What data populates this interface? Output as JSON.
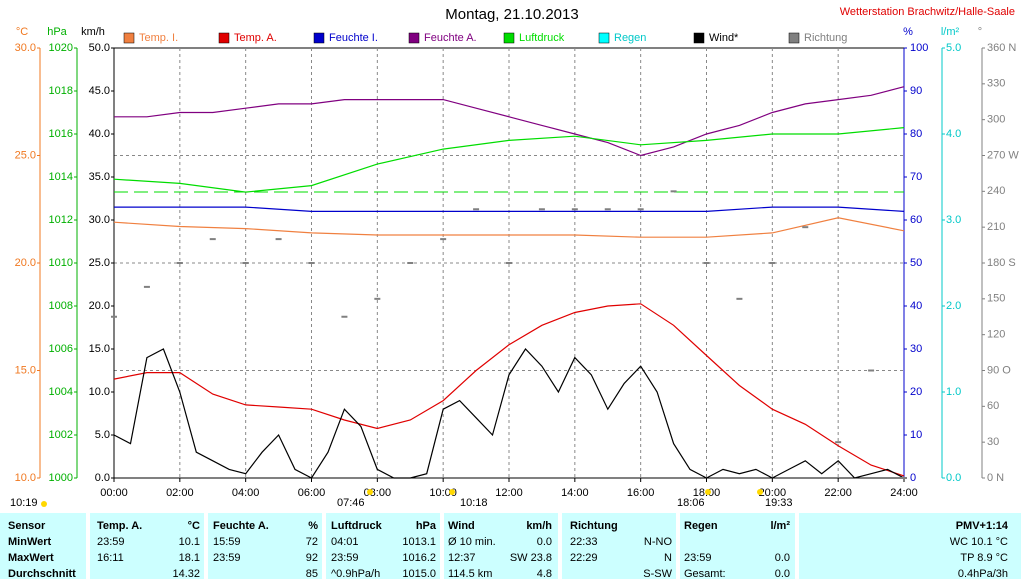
{
  "chart_data": {
    "type": "line",
    "title": "Montag, 21.10.2013",
    "subtitle": "Wetterstation Brachwitz/Halle-Saale",
    "xlim": [
      0,
      24
    ],
    "xticks": [
      {
        "value": 0,
        "label": "00:00"
      },
      {
        "value": 2,
        "label": "02:00"
      },
      {
        "value": 4,
        "label": "04:00"
      },
      {
        "value": 6,
        "label": "06:00"
      },
      {
        "value": 8,
        "label": "08:00"
      },
      {
        "value": 10,
        "label": "10:00"
      },
      {
        "value": 12,
        "label": "12:00"
      },
      {
        "value": 14,
        "label": "14:00"
      },
      {
        "value": 16,
        "label": "16:00"
      },
      {
        "value": 18,
        "label": "18:00"
      },
      {
        "value": 20,
        "label": "20:00"
      },
      {
        "value": 22,
        "label": "22:00"
      },
      {
        "value": 24,
        "label": "24:00"
      }
    ],
    "grid": true,
    "axes": {
      "temp": {
        "unit": "°C",
        "color": "#f07820",
        "lim": [
          10,
          30
        ],
        "ticks": [
          {
            "value": 10,
            "label": "10.0"
          },
          {
            "value": 15,
            "label": "15.0"
          },
          {
            "value": 20,
            "label": "20.0"
          },
          {
            "value": 25,
            "label": "25.0"
          },
          {
            "value": 30,
            "label": "30.0"
          }
        ]
      },
      "pressure": {
        "unit": "hPa",
        "color": "#00b000",
        "lim": [
          1000,
          1020
        ],
        "ticks": [
          1000,
          1002,
          1004,
          1006,
          1008,
          1010,
          1012,
          1014,
          1016,
          1018,
          1020
        ]
      },
      "wind": {
        "unit": "km/h",
        "color": "#000000",
        "lim": [
          0,
          50
        ],
        "ticks": [
          {
            "value": 0,
            "label": "0.0"
          },
          {
            "value": 5,
            "label": "5.0"
          },
          {
            "value": 10,
            "label": "10.0"
          },
          {
            "value": 15,
            "label": "15.0"
          },
          {
            "value": 20,
            "label": "20.0"
          },
          {
            "value": 25,
            "label": "25.0"
          },
          {
            "value": 30,
            "label": "30.0"
          },
          {
            "value": 35,
            "label": "35.0"
          },
          {
            "value": 40,
            "label": "40.0"
          },
          {
            "value": 45,
            "label": "45.0"
          },
          {
            "value": 50,
            "label": "50.0"
          }
        ]
      },
      "humidity": {
        "unit": "%",
        "color": "#0000cc",
        "lim": [
          0,
          100
        ],
        "ticks": [
          0,
          10,
          20,
          30,
          40,
          50,
          60,
          70,
          80,
          90,
          100
        ]
      },
      "rain": {
        "unit": "l/m²",
        "color": "#00c8c8",
        "lim": [
          0,
          5
        ],
        "ticks": [
          {
            "value": 0,
            "label": "0.0"
          },
          {
            "value": 1,
            "label": "1.0"
          },
          {
            "value": 2,
            "label": "2.0"
          },
          {
            "value": 3,
            "label": "3.0"
          },
          {
            "value": 4,
            "label": "4.0"
          },
          {
            "value": 5,
            "label": "5.0"
          }
        ]
      },
      "direction": {
        "unit": "°",
        "color": "#808080",
        "lim": [
          0,
          360
        ],
        "ticks": [
          {
            "value": 0,
            "label": "0 N"
          },
          {
            "value": 30,
            "label": "30"
          },
          {
            "value": 60,
            "label": "60"
          },
          {
            "value": 90,
            "label": "90 O"
          },
          {
            "value": 120,
            "label": "120"
          },
          {
            "value": 150,
            "label": "150"
          },
          {
            "value": 180,
            "label": "180 S"
          },
          {
            "value": 210,
            "label": "210"
          },
          {
            "value": 240,
            "label": "240"
          },
          {
            "value": 270,
            "label": "270 W"
          },
          {
            "value": 300,
            "label": "300"
          },
          {
            "value": 330,
            "label": "330"
          },
          {
            "value": 360,
            "label": "360 N"
          }
        ]
      }
    },
    "pressure_reference": 1013.3,
    "series": [
      {
        "name": "Temp. I.",
        "color": "#f08040",
        "axis": "temp",
        "x": [
          0,
          2,
          4,
          6,
          8,
          10,
          12,
          14,
          16,
          18,
          20,
          22,
          24
        ],
        "values": [
          21.9,
          21.7,
          21.6,
          21.4,
          21.3,
          21.3,
          21.3,
          21.3,
          21.2,
          21.2,
          21.4,
          22.1,
          21.5
        ]
      },
      {
        "name": "Temp. A.",
        "color": "#e00000",
        "axis": "temp",
        "x": [
          0,
          1,
          2,
          3,
          4,
          5,
          6,
          7,
          8,
          9,
          10,
          11,
          12,
          13,
          14,
          15,
          16,
          17,
          18,
          19,
          20,
          21,
          22,
          23,
          24
        ],
        "values": [
          14.6,
          14.9,
          14.9,
          13.9,
          13.4,
          13.3,
          13.2,
          12.7,
          12.3,
          12.7,
          13.6,
          15.0,
          16.2,
          17.1,
          17.7,
          18.0,
          18.1,
          17.1,
          15.7,
          14.3,
          13.2,
          12.5,
          11.5,
          10.6,
          10.1
        ]
      },
      {
        "name": "Feuchte I.",
        "color": "#0000cc",
        "axis": "humidity",
        "x": [
          0,
          2,
          4,
          6,
          8,
          10,
          12,
          14,
          16,
          18,
          20,
          22,
          24
        ],
        "values": [
          63,
          63,
          63,
          62,
          62,
          62,
          62,
          62,
          62,
          62,
          63,
          63,
          62
        ]
      },
      {
        "name": "Feuchte A.",
        "color": "#800080",
        "axis": "humidity",
        "x": [
          0,
          1,
          2,
          3,
          4,
          5,
          6,
          7,
          8,
          9,
          10,
          11,
          12,
          13,
          14,
          15,
          16,
          17,
          18,
          19,
          20,
          21,
          22,
          23,
          24
        ],
        "values": [
          84,
          84,
          85,
          85,
          86,
          87,
          87,
          88,
          88,
          88,
          88,
          86,
          84,
          82,
          80,
          78,
          75,
          77,
          80,
          82,
          85,
          87,
          88,
          89,
          91
        ]
      },
      {
        "name": "Luftdruck",
        "color": "#00dd00",
        "axis": "pressure",
        "x": [
          0,
          2,
          4,
          6,
          8,
          10,
          12,
          14,
          16,
          18,
          20,
          22,
          24
        ],
        "values": [
          1013.9,
          1013.7,
          1013.3,
          1013.6,
          1014.6,
          1015.3,
          1015.7,
          1015.9,
          1015.5,
          1015.7,
          1016.0,
          1016.0,
          1016.3
        ]
      },
      {
        "name": "Regen",
        "color": "#00ffff",
        "axis": "rain",
        "x": [],
        "values": []
      },
      {
        "name": "Wind*",
        "color": "#000000",
        "axis": "wind",
        "x": [
          0,
          0.5,
          1,
          1.5,
          2,
          2.5,
          3,
          3.5,
          4,
          4.5,
          5,
          5.5,
          6,
          6.5,
          7,
          7.5,
          8,
          8.5,
          9,
          9.5,
          10,
          10.5,
          11,
          11.5,
          12,
          12.5,
          13,
          13.5,
          14,
          14.5,
          15,
          15.5,
          16,
          16.5,
          17,
          17.5,
          18,
          18.5,
          19,
          19.5,
          20,
          20.5,
          21,
          21.5,
          22,
          22.5,
          23,
          23.5,
          24
        ],
        "values": [
          5,
          4,
          14,
          15,
          10,
          3,
          2,
          1,
          0.5,
          3,
          5,
          1,
          0,
          3,
          8,
          6,
          1,
          0,
          0,
          0.5,
          8,
          9,
          7,
          5,
          12,
          15,
          13,
          10,
          14,
          12,
          8,
          11,
          13,
          10,
          4,
          1,
          0,
          1,
          0.5,
          1,
          0,
          1,
          2,
          0.5,
          2,
          0,
          0.5,
          1,
          0
        ]
      },
      {
        "name": "Richtung",
        "color": "#808080",
        "axis": "direction",
        "scatter": true,
        "x": [
          0,
          1,
          2,
          3,
          4,
          5,
          6,
          7,
          8,
          9,
          10,
          11,
          12,
          13,
          14,
          15,
          16,
          17,
          18,
          19,
          20,
          21,
          22,
          23,
          24
        ],
        "values": [
          135,
          160,
          180,
          200,
          180,
          200,
          180,
          135,
          150,
          180,
          200,
          225,
          180,
          225,
          225,
          225,
          225,
          240,
          180,
          150,
          180,
          210,
          30,
          90,
          0
        ]
      }
    ],
    "time_marks": [
      "10:19",
      "07:46",
      "10:18",
      "18:06",
      "19:33"
    ]
  },
  "table": {
    "rows": [
      [
        "Sensor",
        "Temp. A.",
        "°C",
        "Feuchte A.",
        "%",
        "Luftdruck",
        "hPa",
        "Wind",
        "km/h",
        "Richtung",
        null,
        "Regen",
        "l/m²",
        "PMV+1:14"
      ],
      [
        "MinWert",
        "23:59",
        "10.1",
        "15:59",
        "72",
        "04:01",
        "1013.1",
        "Ø 10 min.",
        "0.0",
        "22:33",
        "N-NO",
        null,
        null,
        "WC 10.1 °C"
      ],
      [
        "MaxWert",
        "16:11",
        "18.1",
        "23:59",
        "92",
        "23:59",
        "1016.2",
        "12:37",
        "SW 23.8",
        "22:29",
        "N",
        "23:59",
        "0.0",
        "TP 8.9 °C"
      ],
      [
        "Durchschnitt",
        null,
        "14.32",
        null,
        "85",
        "^0.9hPa/h",
        "1015.0",
        "114.5 km",
        "4.8",
        null,
        "S-SW",
        "Gesamt:",
        "0.0",
        "0.4hPa/3h"
      ]
    ]
  }
}
